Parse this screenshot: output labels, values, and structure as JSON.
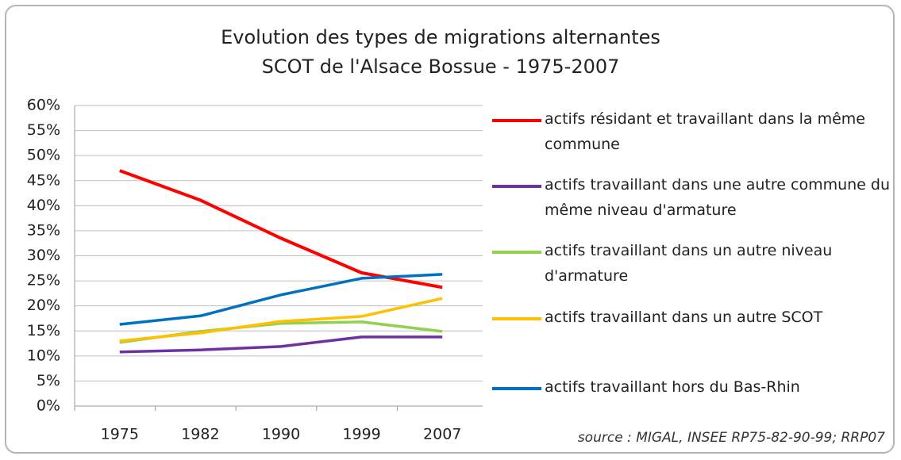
{
  "chart_data": {
    "type": "line",
    "title": "Evolution des types de migrations alternantes",
    "subtitle": "SCOT de l'Alsace Bossue - 1975-2007",
    "source": "source : MIGAL, INSEE RP75-82-90-99; RRP07",
    "categories": [
      "1975",
      "1982",
      "1990",
      "1999",
      "2007"
    ],
    "series": [
      {
        "name": "actifs résidant et travaillant dans la même commune",
        "color": "#ff0000",
        "values": [
          47.0,
          41.1,
          33.5,
          26.6,
          23.7
        ]
      },
      {
        "name": "actifs travaillant dans une autre commune du même niveau d'armature",
        "color": "#7030a0",
        "values": [
          10.8,
          11.2,
          11.9,
          13.8,
          13.8
        ]
      },
      {
        "name": "actifs travaillant dans un autre niveau d'armature",
        "color": "#92d050",
        "values": [
          12.7,
          14.9,
          16.5,
          16.8,
          14.9
        ]
      },
      {
        "name": "actifs travaillant dans un autre SCOT",
        "color": "#ffc000",
        "values": [
          13.0,
          14.6,
          16.9,
          17.9,
          21.5
        ]
      },
      {
        "name": "actifs travaillant hors du Bas-Rhin",
        "color": "#0070c0",
        "values": [
          16.3,
          18.0,
          22.2,
          25.5,
          26.3
        ]
      }
    ],
    "ylim": [
      0,
      60
    ],
    "yticks": [
      {
        "value": 0,
        "label": "0%"
      },
      {
        "value": 5,
        "label": "5%"
      },
      {
        "value": 10,
        "label": "10%"
      },
      {
        "value": 15,
        "label": "15%"
      },
      {
        "value": 20,
        "label": "20%"
      },
      {
        "value": 25,
        "label": "25%"
      },
      {
        "value": 30,
        "label": "30%"
      },
      {
        "value": 35,
        "label": "35%"
      },
      {
        "value": 40,
        "label": "40%"
      },
      {
        "value": 45,
        "label": "45%"
      },
      {
        "value": 50,
        "label": "50%"
      },
      {
        "value": 55,
        "label": "55%"
      },
      {
        "value": 60,
        "label": "60%"
      }
    ],
    "grid": true
  }
}
